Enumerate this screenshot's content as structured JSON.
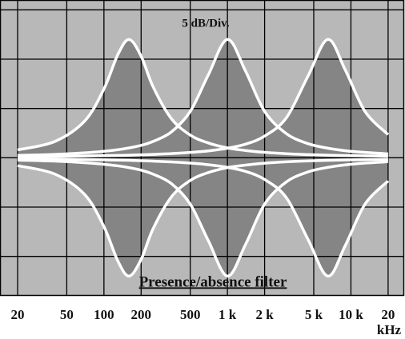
{
  "chart_data": {
    "type": "line",
    "annotation": "5 dB/Div.",
    "title": "Presence/absence filter",
    "x_unit": "kHz",
    "log_x": true,
    "grid": true,
    "background": "#b8b8b8",
    "fill_color": "#858585",
    "x": [
      20,
      40,
      70,
      100,
      130,
      160,
      200,
      250,
      350,
      500,
      700,
      1000,
      1400,
      2000,
      3000,
      4500,
      6500,
      9000,
      13000,
      20000
    ],
    "series": [
      {
        "color": "#ffffff",
        "values": [
          0.8,
          1.65,
          3.74,
          6.98,
          10.5,
          12,
          10.3,
          7.2,
          4.0,
          2.3,
          1.5,
          1.0,
          0.74,
          0.55,
          0.41,
          0.32,
          0.26,
          0.22,
          0.19,
          0.16
        ]
      },
      {
        "color": "#ffffff",
        "values": [
          0.24,
          0.34,
          0.5,
          0.66,
          0.82,
          1.0,
          1.26,
          1.66,
          2.6,
          4.7,
          8.4,
          12,
          8.8,
          4.7,
          2.45,
          1.43,
          0.97,
          0.72,
          0.54,
          0.4
        ]
      },
      {
        "color": "#ffffff",
        "values": [
          0.11,
          0.14,
          0.18,
          0.21,
          0.24,
          0.26,
          0.3,
          0.34,
          0.42,
          0.54,
          0.7,
          0.97,
          1.38,
          2.2,
          4.05,
          8.3,
          12,
          8.9,
          4.7,
          2.35
        ]
      },
      {
        "color": "#ffffff",
        "values": [
          -0.8,
          -1.65,
          -3.74,
          -6.98,
          -10.5,
          -12,
          -10.3,
          -7.2,
          -4.0,
          -2.3,
          -1.5,
          -1.0,
          -0.74,
          -0.55,
          -0.41,
          -0.32,
          -0.26,
          -0.22,
          -0.19,
          -0.16
        ]
      },
      {
        "color": "#ffffff",
        "values": [
          -0.24,
          -0.34,
          -0.5,
          -0.66,
          -0.82,
          -1.0,
          -1.26,
          -1.66,
          -2.6,
          -4.7,
          -8.4,
          -12,
          -8.8,
          -4.7,
          -2.45,
          -1.43,
          -0.97,
          -0.72,
          -0.54,
          -0.4
        ]
      },
      {
        "color": "#ffffff",
        "values": [
          -0.11,
          -0.14,
          -0.18,
          -0.21,
          -0.24,
          -0.26,
          -0.3,
          -0.34,
          -0.42,
          -0.54,
          -0.7,
          -0.97,
          -1.38,
          -2.2,
          -4.05,
          -8.3,
          -12,
          -8.9,
          -4.7,
          -2.35
        ]
      }
    ],
    "xlim": [
      14.4,
      27000
    ],
    "xticks": [
      20,
      50,
      100,
      200,
      500,
      {
        "value": 1000,
        "label": "1 k"
      },
      {
        "value": 2000,
        "label": "2 k"
      },
      {
        "value": 5000,
        "label": "5 k"
      },
      {
        "value": 10000,
        "label": "10 k"
      },
      {
        "value": 20000,
        "label": "20"
      }
    ],
    "ylim": [
      -14,
      16
    ],
    "yticks": [
      -10,
      -5,
      0,
      5,
      10,
      15
    ]
  }
}
